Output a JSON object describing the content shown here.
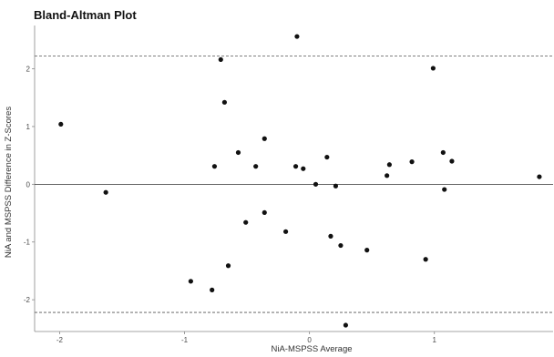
{
  "chart_data": {
    "type": "scatter",
    "title": "Bland-Altman Plot",
    "xlabel": "NiA-MSPSS Average",
    "ylabel": "NiA and MSPSS Difference in Z-Scores",
    "xlim": [
      -2.2,
      1.95
    ],
    "ylim": [
      -2.55,
      2.75
    ],
    "x_ticks": [
      -2,
      -1,
      0,
      1
    ],
    "x_tick_labels": [
      "-2",
      "-1",
      "0",
      "1"
    ],
    "y_ticks": [
      -2,
      -1,
      0,
      1,
      2
    ],
    "y_tick_labels": [
      "-2",
      "-1",
      "0",
      "1",
      "2"
    ],
    "grid": false,
    "reference_lines": [
      {
        "y": 2.22,
        "style": "dashed"
      },
      {
        "y": 0,
        "style": "solid"
      },
      {
        "y": -2.22,
        "style": "dashed"
      }
    ],
    "points": [
      {
        "x": -1.99,
        "y": 1.04
      },
      {
        "x": -1.63,
        "y": -0.14
      },
      {
        "x": -0.95,
        "y": -1.68
      },
      {
        "x": -0.78,
        "y": -1.83
      },
      {
        "x": -0.76,
        "y": 0.31
      },
      {
        "x": -0.71,
        "y": 2.16
      },
      {
        "x": -0.68,
        "y": 1.42
      },
      {
        "x": -0.65,
        "y": -1.41
      },
      {
        "x": -0.57,
        "y": 0.55
      },
      {
        "x": -0.51,
        "y": -0.66
      },
      {
        "x": -0.43,
        "y": 0.31
      },
      {
        "x": -0.36,
        "y": -0.49
      },
      {
        "x": -0.36,
        "y": 0.79
      },
      {
        "x": -0.19,
        "y": -0.82
      },
      {
        "x": -0.11,
        "y": 0.31
      },
      {
        "x": -0.1,
        "y": 2.56
      },
      {
        "x": -0.05,
        "y": 0.27
      },
      {
        "x": 0.05,
        "y": 0.0
      },
      {
        "x": 0.14,
        "y": 0.47
      },
      {
        "x": 0.17,
        "y": -0.9
      },
      {
        "x": 0.21,
        "y": -0.03
      },
      {
        "x": 0.25,
        "y": -1.06
      },
      {
        "x": 0.29,
        "y": -2.44
      },
      {
        "x": 0.46,
        "y": -1.14
      },
      {
        "x": 0.62,
        "y": 0.15
      },
      {
        "x": 0.64,
        "y": 0.34
      },
      {
        "x": 0.82,
        "y": 0.39
      },
      {
        "x": 0.93,
        "y": -1.3
      },
      {
        "x": 0.99,
        "y": 2.01
      },
      {
        "x": 1.07,
        "y": 0.55
      },
      {
        "x": 1.08,
        "y": -0.09
      },
      {
        "x": 1.14,
        "y": 0.4
      },
      {
        "x": 1.84,
        "y": 0.13
      }
    ],
    "colors": {
      "points": "#111111",
      "lines": "#555555",
      "axes": "#888888"
    }
  }
}
